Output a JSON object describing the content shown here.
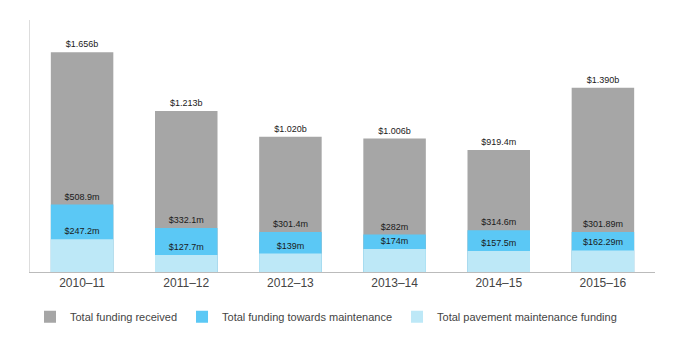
{
  "chart_data": {
    "type": "bar",
    "categories": [
      "2010–11",
      "2011–12",
      "2012–13",
      "2013–14",
      "2014–15",
      "2015–16"
    ],
    "series": [
      {
        "name": "Total funding received",
        "color": "#a6a6a6",
        "values": [
          1656,
          1213,
          1020,
          1006,
          919.4,
          1390
        ],
        "value_labels": [
          "$1.656b",
          "$1.213b",
          "$1.020b",
          "$1.006b",
          "$919.4m",
          "$1.390b"
        ]
      },
      {
        "name": "Total funding towards maintenance",
        "color": "#5bc8f5",
        "values": [
          508.9,
          332.1,
          301.4,
          282,
          314.6,
          301.89
        ],
        "value_labels": [
          "$508.9m",
          "$332.1m",
          "$301.4m",
          "$282m",
          "$314.6m",
          "$301.89m"
        ]
      },
      {
        "name": "Total pavement maintenance funding",
        "color": "#bde8f7",
        "values": [
          247.2,
          127.7,
          139,
          174,
          157.5,
          162.29
        ],
        "value_labels": [
          "$247.2m",
          "$127.7m",
          "$139m",
          "$174m",
          "$157.5m",
          "$162.29m"
        ]
      }
    ],
    "ylim": [
      0,
      1900
    ],
    "stacked": false,
    "data_labels": true,
    "tick_labels": "x",
    "grid": false,
    "legend": "bottom"
  }
}
